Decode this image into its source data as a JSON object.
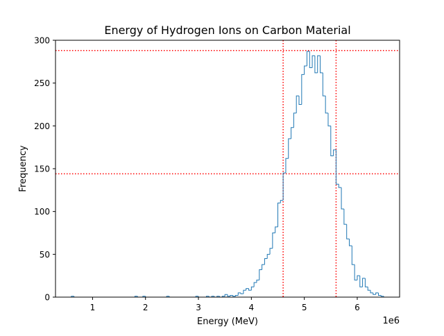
{
  "chart_data": {
    "type": "histogram",
    "title": "Energy of Hydrogen Ions on Carbon Material",
    "xlabel": "Energy (MeV)",
    "ylabel": "Frequency",
    "x_offset_label": "1e6",
    "xlim": [
      0.3,
      6.8
    ],
    "ylim": [
      0,
      300
    ],
    "x_ticks": [
      1,
      2,
      3,
      4,
      5,
      6
    ],
    "y_ticks": [
      0,
      50,
      100,
      150,
      200,
      250,
      300
    ],
    "bin_width": 0.05,
    "series_color": "#1f77b4",
    "bins": [
      {
        "x": 0.6,
        "y": 1
      },
      {
        "x": 0.65,
        "y": 0
      },
      {
        "x": 0.7,
        "y": 0
      },
      {
        "x": 0.75,
        "y": 0
      },
      {
        "x": 0.8,
        "y": 0
      },
      {
        "x": 0.85,
        "y": 0
      },
      {
        "x": 0.9,
        "y": 0
      },
      {
        "x": 0.95,
        "y": 0
      },
      {
        "x": 1.0,
        "y": 0
      },
      {
        "x": 1.05,
        "y": 0
      },
      {
        "x": 1.1,
        "y": 0
      },
      {
        "x": 1.15,
        "y": 0
      },
      {
        "x": 1.2,
        "y": 0
      },
      {
        "x": 1.25,
        "y": 0
      },
      {
        "x": 1.3,
        "y": 0
      },
      {
        "x": 1.35,
        "y": 0
      },
      {
        "x": 1.4,
        "y": 0
      },
      {
        "x": 1.45,
        "y": 0
      },
      {
        "x": 1.5,
        "y": 0
      },
      {
        "x": 1.55,
        "y": 0
      },
      {
        "x": 1.6,
        "y": 0
      },
      {
        "x": 1.65,
        "y": 0
      },
      {
        "x": 1.7,
        "y": 0
      },
      {
        "x": 1.75,
        "y": 0
      },
      {
        "x": 1.8,
        "y": 1
      },
      {
        "x": 1.85,
        "y": 0
      },
      {
        "x": 1.9,
        "y": 0
      },
      {
        "x": 1.95,
        "y": 1
      },
      {
        "x": 2.0,
        "y": 0
      },
      {
        "x": 2.05,
        "y": 0
      },
      {
        "x": 2.1,
        "y": 0
      },
      {
        "x": 2.15,
        "y": 0
      },
      {
        "x": 2.2,
        "y": 0
      },
      {
        "x": 2.25,
        "y": 0
      },
      {
        "x": 2.3,
        "y": 0
      },
      {
        "x": 2.35,
        "y": 0
      },
      {
        "x": 2.4,
        "y": 1
      },
      {
        "x": 2.45,
        "y": 0
      },
      {
        "x": 2.5,
        "y": 0
      },
      {
        "x": 2.55,
        "y": 0
      },
      {
        "x": 2.6,
        "y": 0
      },
      {
        "x": 2.65,
        "y": 0
      },
      {
        "x": 2.7,
        "y": 0
      },
      {
        "x": 2.75,
        "y": 0
      },
      {
        "x": 2.8,
        "y": 0
      },
      {
        "x": 2.85,
        "y": 0
      },
      {
        "x": 2.9,
        "y": 0
      },
      {
        "x": 2.95,
        "y": 1
      },
      {
        "x": 3.0,
        "y": 0
      },
      {
        "x": 3.05,
        "y": 0
      },
      {
        "x": 3.1,
        "y": 0
      },
      {
        "x": 3.15,
        "y": 1
      },
      {
        "x": 3.2,
        "y": 0
      },
      {
        "x": 3.25,
        "y": 1
      },
      {
        "x": 3.3,
        "y": 0
      },
      {
        "x": 3.35,
        "y": 1
      },
      {
        "x": 3.4,
        "y": 0
      },
      {
        "x": 3.45,
        "y": 1
      },
      {
        "x": 3.5,
        "y": 3
      },
      {
        "x": 3.55,
        "y": 1
      },
      {
        "x": 3.6,
        "y": 2
      },
      {
        "x": 3.65,
        "y": 1
      },
      {
        "x": 3.7,
        "y": 2
      },
      {
        "x": 3.75,
        "y": 5
      },
      {
        "x": 3.8,
        "y": 4
      },
      {
        "x": 3.85,
        "y": 8
      },
      {
        "x": 3.9,
        "y": 10
      },
      {
        "x": 3.95,
        "y": 8
      },
      {
        "x": 4.0,
        "y": 12
      },
      {
        "x": 4.05,
        "y": 17
      },
      {
        "x": 4.1,
        "y": 20
      },
      {
        "x": 4.15,
        "y": 32
      },
      {
        "x": 4.2,
        "y": 38
      },
      {
        "x": 4.25,
        "y": 45
      },
      {
        "x": 4.3,
        "y": 50
      },
      {
        "x": 4.35,
        "y": 57
      },
      {
        "x": 4.4,
        "y": 75
      },
      {
        "x": 4.45,
        "y": 82
      },
      {
        "x": 4.5,
        "y": 110
      },
      {
        "x": 4.55,
        "y": 113
      },
      {
        "x": 4.6,
        "y": 145
      },
      {
        "x": 4.65,
        "y": 162
      },
      {
        "x": 4.7,
        "y": 185
      },
      {
        "x": 4.75,
        "y": 198
      },
      {
        "x": 4.8,
        "y": 215
      },
      {
        "x": 4.85,
        "y": 235
      },
      {
        "x": 4.9,
        "y": 225
      },
      {
        "x": 4.95,
        "y": 260
      },
      {
        "x": 5.0,
        "y": 270
      },
      {
        "x": 5.05,
        "y": 287
      },
      {
        "x": 5.1,
        "y": 268
      },
      {
        "x": 5.15,
        "y": 282
      },
      {
        "x": 5.2,
        "y": 262
      },
      {
        "x": 5.25,
        "y": 282
      },
      {
        "x": 5.3,
        "y": 262
      },
      {
        "x": 5.35,
        "y": 235
      },
      {
        "x": 5.4,
        "y": 215
      },
      {
        "x": 5.45,
        "y": 200
      },
      {
        "x": 5.5,
        "y": 165
      },
      {
        "x": 5.55,
        "y": 172
      },
      {
        "x": 5.6,
        "y": 132
      },
      {
        "x": 5.65,
        "y": 128
      },
      {
        "x": 5.7,
        "y": 103
      },
      {
        "x": 5.75,
        "y": 85
      },
      {
        "x": 5.8,
        "y": 68
      },
      {
        "x": 5.85,
        "y": 60
      },
      {
        "x": 5.9,
        "y": 38
      },
      {
        "x": 5.95,
        "y": 20
      },
      {
        "x": 6.0,
        "y": 25
      },
      {
        "x": 6.05,
        "y": 12
      },
      {
        "x": 6.1,
        "y": 22
      },
      {
        "x": 6.15,
        "y": 12
      },
      {
        "x": 6.2,
        "y": 8
      },
      {
        "x": 6.25,
        "y": 5
      },
      {
        "x": 6.3,
        "y": 3
      },
      {
        "x": 6.35,
        "y": 5
      },
      {
        "x": 6.4,
        "y": 2
      },
      {
        "x": 6.45,
        "y": 1
      }
    ],
    "reference_lines": [
      {
        "orientation": "horizontal",
        "value": 288,
        "color": "#ff0000",
        "style": "dotted"
      },
      {
        "orientation": "horizontal",
        "value": 144,
        "color": "#ff0000",
        "style": "dotted"
      },
      {
        "orientation": "vertical",
        "value": 4.6,
        "color": "#ff0000",
        "style": "dotted"
      },
      {
        "orientation": "vertical",
        "value": 5.6,
        "color": "#ff0000",
        "style": "dotted"
      }
    ]
  }
}
